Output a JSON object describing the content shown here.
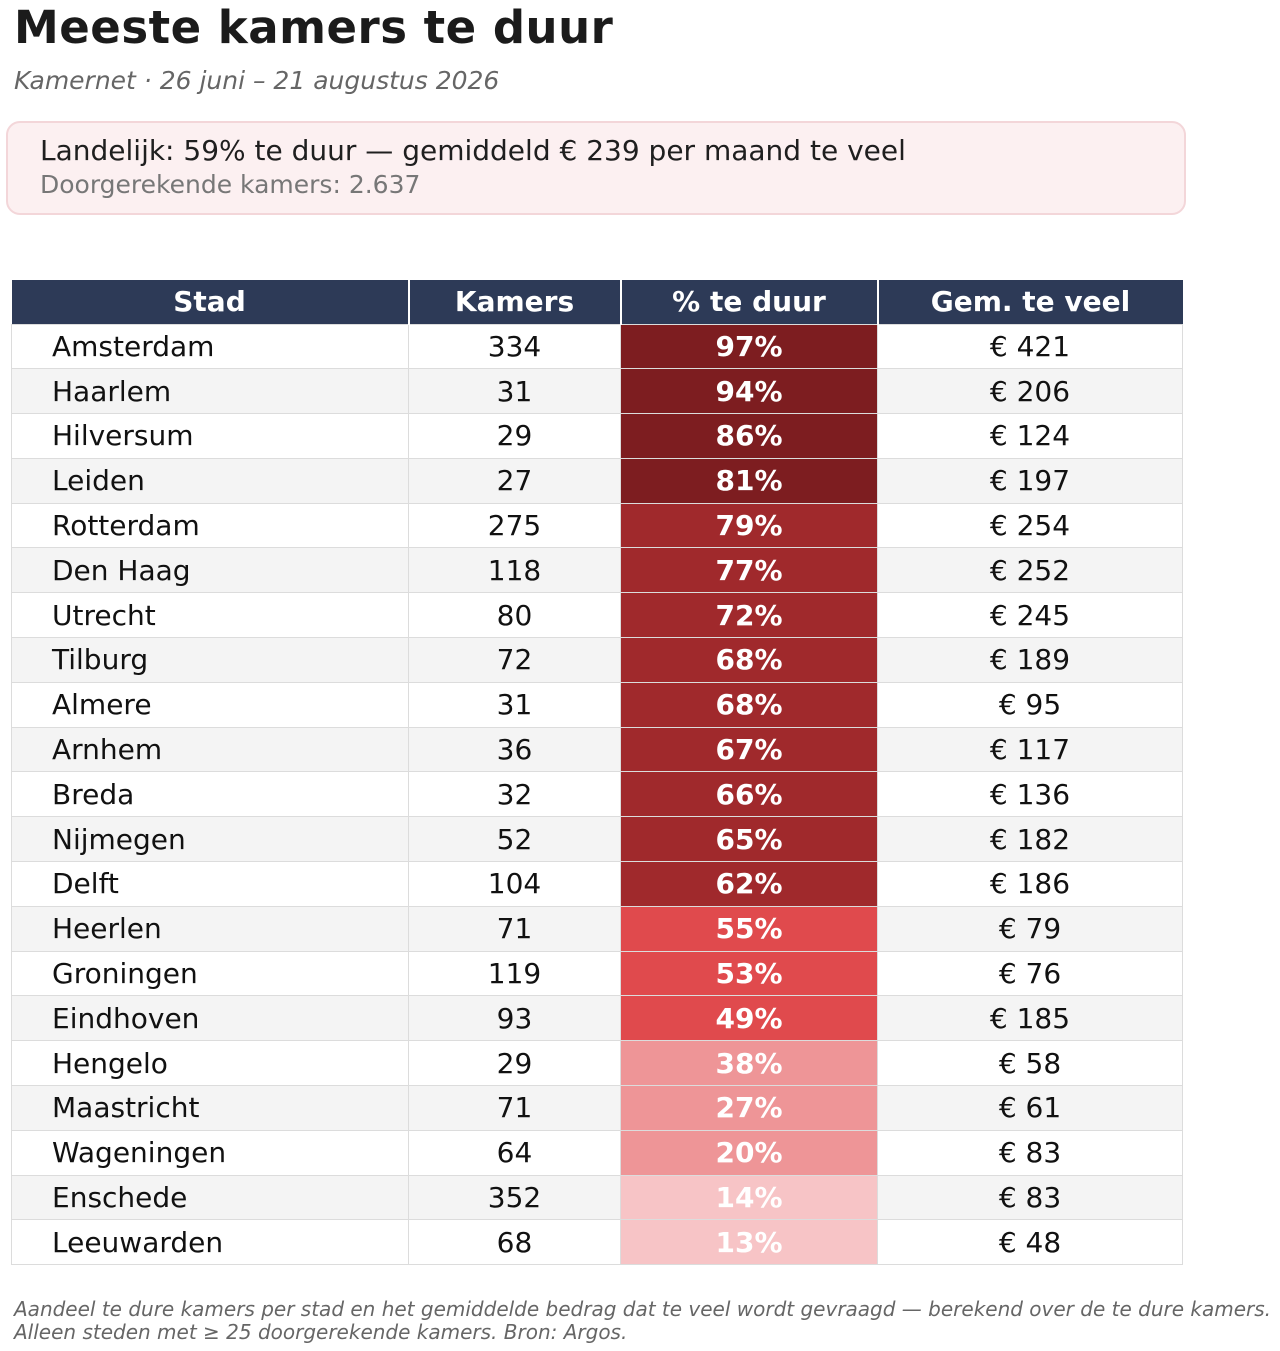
{
  "header": {
    "title": "Meeste kamers te duur",
    "subtitle": "Kamernet  ·  26 juni – 21 augustus 2026"
  },
  "summary": {
    "main": "Landelijk: 59% te duur — gemiddeld € 239 per maand te veel",
    "sub": "Doorgerekende kamers: 2.637"
  },
  "footnote": {
    "line1": "Aandeel te dure kamers per stad en het gemiddelde bedrag dat te veel wordt gevraagd — berekend over de te dure kamers.",
    "line2": "Alleen steden met ≥ 25 doorgerekende kamers. Bron: Argos."
  },
  "colors": {
    "header": "#2d3a57",
    "pct_dark": "#7d1d20",
    "pct_mid": "#a0292c",
    "pct_bright": "#e04a4d",
    "pct_light": "#ee9597",
    "pct_pale": "#f7c4c6"
  },
  "chart_data": {
    "type": "table",
    "columns": [
      "Stad",
      "Kamers",
      "% te duur",
      "Gem. te veel"
    ],
    "rows": [
      {
        "stad": "Amsterdam",
        "kamers": "334",
        "pct": "97%",
        "teveel": "€ 421",
        "tone": "pct_dark"
      },
      {
        "stad": "Haarlem",
        "kamers": "31",
        "pct": "94%",
        "teveel": "€ 206",
        "tone": "pct_dark"
      },
      {
        "stad": "Hilversum",
        "kamers": "29",
        "pct": "86%",
        "teveel": "€ 124",
        "tone": "pct_dark"
      },
      {
        "stad": "Leiden",
        "kamers": "27",
        "pct": "81%",
        "teveel": "€ 197",
        "tone": "pct_dark"
      },
      {
        "stad": "Rotterdam",
        "kamers": "275",
        "pct": "79%",
        "teveel": "€ 254",
        "tone": "pct_mid"
      },
      {
        "stad": "Den Haag",
        "kamers": "118",
        "pct": "77%",
        "teveel": "€ 252",
        "tone": "pct_mid"
      },
      {
        "stad": "Utrecht",
        "kamers": "80",
        "pct": "72%",
        "teveel": "€ 245",
        "tone": "pct_mid"
      },
      {
        "stad": "Tilburg",
        "kamers": "72",
        "pct": "68%",
        "teveel": "€ 189",
        "tone": "pct_mid"
      },
      {
        "stad": "Almere",
        "kamers": "31",
        "pct": "68%",
        "teveel": "€ 95",
        "tone": "pct_mid"
      },
      {
        "stad": "Arnhem",
        "kamers": "36",
        "pct": "67%",
        "teveel": "€ 117",
        "tone": "pct_mid"
      },
      {
        "stad": "Breda",
        "kamers": "32",
        "pct": "66%",
        "teveel": "€ 136",
        "tone": "pct_mid"
      },
      {
        "stad": "Nijmegen",
        "kamers": "52",
        "pct": "65%",
        "teveel": "€ 182",
        "tone": "pct_mid"
      },
      {
        "stad": "Delft",
        "kamers": "104",
        "pct": "62%",
        "teveel": "€ 186",
        "tone": "pct_mid"
      },
      {
        "stad": "Heerlen",
        "kamers": "71",
        "pct": "55%",
        "teveel": "€ 79",
        "tone": "pct_bright"
      },
      {
        "stad": "Groningen",
        "kamers": "119",
        "pct": "53%",
        "teveel": "€ 76",
        "tone": "pct_bright"
      },
      {
        "stad": "Eindhoven",
        "kamers": "93",
        "pct": "49%",
        "teveel": "€ 185",
        "tone": "pct_bright"
      },
      {
        "stad": "Hengelo",
        "kamers": "29",
        "pct": "38%",
        "teveel": "€ 58",
        "tone": "pct_light"
      },
      {
        "stad": "Maastricht",
        "kamers": "71",
        "pct": "27%",
        "teveel": "€ 61",
        "tone": "pct_light"
      },
      {
        "stad": "Wageningen",
        "kamers": "64",
        "pct": "20%",
        "teveel": "€ 83",
        "tone": "pct_light"
      },
      {
        "stad": "Enschede",
        "kamers": "352",
        "pct": "14%",
        "teveel": "€ 83",
        "tone": "pct_pale"
      },
      {
        "stad": "Leeuwarden",
        "kamers": "68",
        "pct": "13%",
        "teveel": "€ 48",
        "tone": "pct_pale"
      }
    ]
  }
}
